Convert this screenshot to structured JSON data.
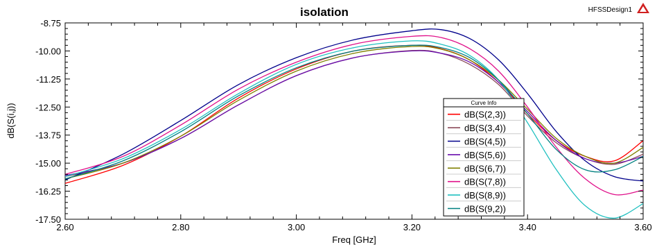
{
  "header": {
    "design_name": "HFSSDesign1"
  },
  "chart_data": {
    "type": "line",
    "title": "isolation",
    "xlabel": "Freq [GHz]",
    "ylabel": "dB(S(i,j))",
    "xlim": [
      2.6,
      3.6
    ],
    "ylim": [
      -17.5,
      -8.75
    ],
    "xticks": [
      "2.60",
      "2.80",
      "3.00",
      "3.20",
      "3.40",
      "3.60"
    ],
    "yticks": [
      "-8.75",
      "-10.00",
      "-11.25",
      "-12.50",
      "-13.75",
      "-15.00",
      "-16.25",
      "-17.50"
    ],
    "grid": false,
    "legend_title": "Curve Info",
    "legend_position": "right",
    "series": [
      {
        "name": "dB(S(2,3))",
        "color": "#ff0000",
        "x": [
          2.6,
          2.7,
          2.8,
          2.9,
          3.0,
          3.1,
          3.2,
          3.25,
          3.3,
          3.35,
          3.4,
          3.45,
          3.5,
          3.55,
          3.6
        ],
        "y": [
          -15.9,
          -15.1,
          -13.8,
          -12.1,
          -10.8,
          -10.0,
          -9.75,
          -9.9,
          -10.4,
          -11.4,
          -12.8,
          -14.0,
          -14.7,
          -14.9,
          -14.0
        ]
      },
      {
        "name": "dB(S(3,4))",
        "color": "#8b4a5a",
        "x": [
          2.6,
          2.7,
          2.8,
          2.9,
          3.0,
          3.1,
          3.2,
          3.25,
          3.3,
          3.35,
          3.4,
          3.45,
          3.5,
          3.55,
          3.6
        ],
        "y": [
          -15.6,
          -15.0,
          -13.9,
          -12.4,
          -11.1,
          -10.3,
          -9.98,
          -10.1,
          -10.6,
          -11.5,
          -12.9,
          -14.1,
          -14.8,
          -15.05,
          -14.6
        ]
      },
      {
        "name": "dB(S(4,5))",
        "color": "#00008b",
        "x": [
          2.6,
          2.7,
          2.8,
          2.9,
          3.0,
          3.1,
          3.2,
          3.25,
          3.3,
          3.35,
          3.4,
          3.45,
          3.5,
          3.55,
          3.6
        ],
        "y": [
          -15.75,
          -14.6,
          -13.1,
          -11.5,
          -10.3,
          -9.5,
          -9.1,
          -9.05,
          -9.45,
          -10.4,
          -11.9,
          -13.6,
          -14.9,
          -15.6,
          -15.8
        ]
      },
      {
        "name": "dB(S(5,6))",
        "color": "#6a0dad",
        "x": [
          2.6,
          2.7,
          2.8,
          2.9,
          3.0,
          3.1,
          3.2,
          3.25,
          3.3,
          3.35,
          3.4,
          3.45,
          3.5,
          3.55,
          3.6
        ],
        "y": [
          -15.55,
          -15.0,
          -13.9,
          -12.4,
          -11.1,
          -10.3,
          -10.0,
          -10.1,
          -10.5,
          -11.4,
          -12.7,
          -14.0,
          -14.8,
          -15.0,
          -14.7
        ]
      },
      {
        "name": "dB(S(6,7))",
        "color": "#808000",
        "x": [
          2.6,
          2.7,
          2.8,
          2.9,
          3.0,
          3.1,
          3.2,
          3.25,
          3.3,
          3.35,
          3.4,
          3.45,
          3.5,
          3.55,
          3.6
        ],
        "y": [
          -15.7,
          -15.0,
          -13.8,
          -12.2,
          -10.9,
          -10.1,
          -9.8,
          -9.92,
          -10.4,
          -11.3,
          -12.6,
          -13.9,
          -14.7,
          -15.0,
          -14.3
        ]
      },
      {
        "name": "dB(S(7,8))",
        "color": "#e0108a",
        "x": [
          2.6,
          2.7,
          2.8,
          2.9,
          3.0,
          3.1,
          3.2,
          3.25,
          3.3,
          3.35,
          3.4,
          3.45,
          3.5,
          3.55,
          3.6
        ],
        "y": [
          -15.5,
          -14.7,
          -13.3,
          -11.7,
          -10.5,
          -9.7,
          -9.35,
          -9.4,
          -9.9,
          -10.9,
          -12.5,
          -14.3,
          -15.7,
          -16.4,
          -16.2
        ]
      },
      {
        "name": "dB(S(8,9))",
        "color": "#20c0c0",
        "x": [
          2.6,
          2.7,
          2.8,
          2.9,
          3.0,
          3.1,
          3.2,
          3.25,
          3.3,
          3.35,
          3.4,
          3.45,
          3.5,
          3.55,
          3.6
        ],
        "y": [
          -15.6,
          -14.8,
          -13.5,
          -11.9,
          -10.6,
          -9.85,
          -9.55,
          -9.7,
          -10.2,
          -11.3,
          -13.2,
          -15.3,
          -16.9,
          -17.45,
          -16.8
        ]
      },
      {
        "name": "dB(S(9,2))",
        "color": "#008080",
        "x": [
          2.6,
          2.7,
          2.8,
          2.9,
          3.0,
          3.1,
          3.2,
          3.25,
          3.3,
          3.35,
          3.4,
          3.45,
          3.5,
          3.55,
          3.6
        ],
        "y": [
          -15.7,
          -14.9,
          -13.6,
          -12.0,
          -10.75,
          -10.0,
          -9.75,
          -9.85,
          -10.3,
          -11.3,
          -12.8,
          -14.4,
          -15.3,
          -15.3,
          -14.7
        ]
      }
    ]
  }
}
